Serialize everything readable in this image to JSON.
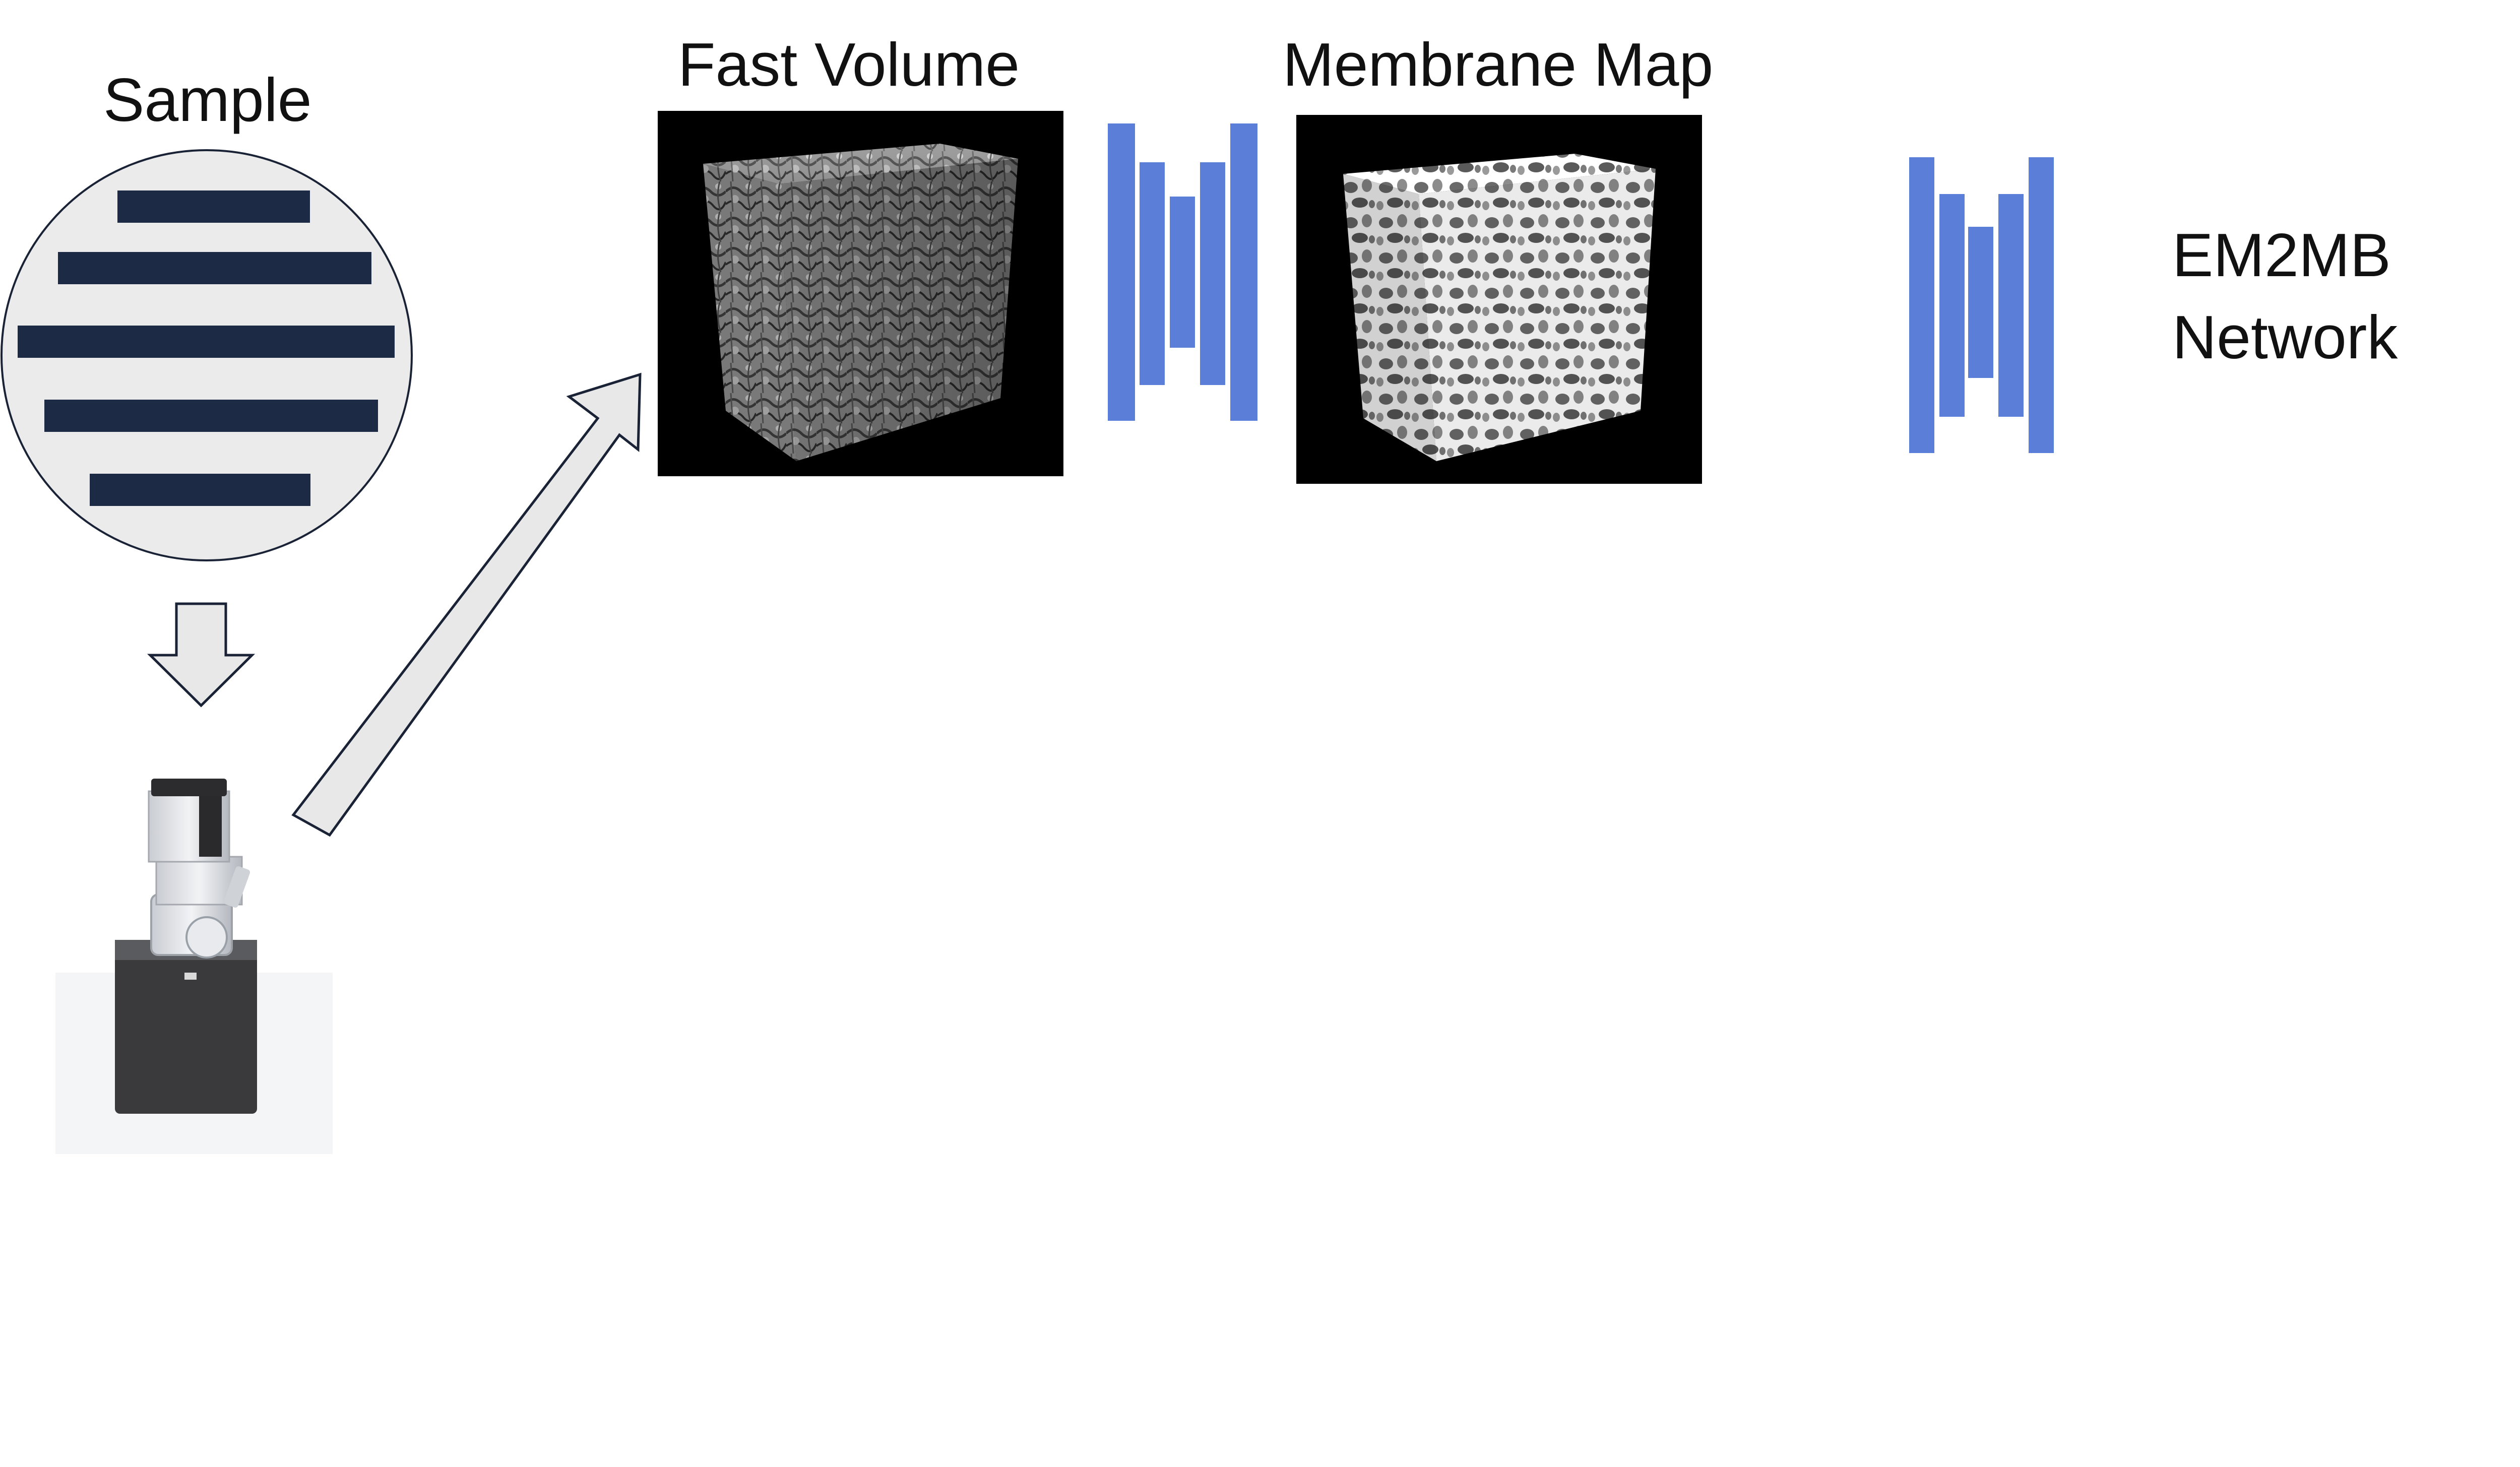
{
  "labels": {
    "sample": "Sample",
    "fast_volume": "Fast Volume",
    "membrane_map": "Membrane Map",
    "network_line1": "EM2MB",
    "network_line2": "Network"
  },
  "colors": {
    "background": "#ffffff",
    "sample_disc_fill": "#ebebeb",
    "sample_bar_fill": "#1c2a45",
    "arrow_fill": "#e8e8e8",
    "arrow_stroke": "#1a2236",
    "network_bar_fill": "#5b7fd9",
    "volume_panel_bg": "#000000"
  },
  "icons": {
    "sample": "sample-disc-icon",
    "microscope": "electron-microscope-icon",
    "down_arrow": "down-arrow-icon",
    "diagonal_arrow": "diagonal-arrow-icon",
    "network": "encoder-decoder-icon",
    "fast_volume": "em-volume-cube",
    "membrane_map": "membrane-map-cube"
  }
}
